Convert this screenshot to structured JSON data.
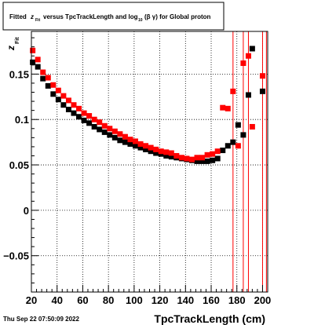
{
  "title_box": {
    "prefix": "Fitted",
    "z": "z",
    "z_sub": "Fit",
    "mid": "versus TpcTrackLength and log",
    "log_sub": "10",
    "paren": "(β  γ) for Global proton"
  },
  "footer": {
    "timestamp": "Thu Sep 22 07:50:09 2022"
  },
  "chart_data": {
    "type": "scatter",
    "title": "Fitted z_Fit versus TpcTrackLength and log_10 (β γ) for Global proton",
    "xlabel": "TpcTrackLength (cm)",
    "ylabel": "z",
    "ylabel_sub": "Fit",
    "xlim": [
      20,
      204
    ],
    "ylim": [
      -0.09,
      0.197
    ],
    "xticks": [
      20,
      40,
      60,
      80,
      100,
      120,
      140,
      160,
      180,
      200
    ],
    "yticks": [
      -0.05,
      0,
      0.05,
      0.1,
      0.15
    ],
    "ytick_labels": [
      "−0.05",
      "0",
      "0.05",
      "0.1",
      "0.15"
    ],
    "grid": true,
    "series": [
      {
        "color": "#000000",
        "points": [
          {
            "x": 21,
            "y": 0.163
          },
          {
            "x": 25,
            "y": 0.158
          },
          {
            "x": 29,
            "y": 0.145
          },
          {
            "x": 33,
            "y": 0.137
          },
          {
            "x": 37,
            "y": 0.128
          },
          {
            "x": 41,
            "y": 0.122
          },
          {
            "x": 45,
            "y": 0.116
          },
          {
            "x": 49,
            "y": 0.111
          },
          {
            "x": 53,
            "y": 0.107
          },
          {
            "x": 57,
            "y": 0.103
          },
          {
            "x": 61,
            "y": 0.099
          },
          {
            "x": 65,
            "y": 0.096
          },
          {
            "x": 69,
            "y": 0.092
          },
          {
            "x": 73,
            "y": 0.089
          },
          {
            "x": 77,
            "y": 0.086
          },
          {
            "x": 81,
            "y": 0.083
          },
          {
            "x": 85,
            "y": 0.08
          },
          {
            "x": 89,
            "y": 0.077
          },
          {
            "x": 93,
            "y": 0.075
          },
          {
            "x": 97,
            "y": 0.073
          },
          {
            "x": 101,
            "y": 0.071
          },
          {
            "x": 105,
            "y": 0.069
          },
          {
            "x": 109,
            "y": 0.067
          },
          {
            "x": 113,
            "y": 0.065
          },
          {
            "x": 117,
            "y": 0.063
          },
          {
            "x": 121,
            "y": 0.062
          },
          {
            "x": 125,
            "y": 0.06
          },
          {
            "x": 129,
            "y": 0.059
          },
          {
            "x": 133,
            "y": 0.058
          },
          {
            "x": 137,
            "y": 0.057
          },
          {
            "x": 141,
            "y": 0.056
          },
          {
            "x": 145,
            "y": 0.055
          },
          {
            "x": 149,
            "y": 0.054
          },
          {
            "x": 153,
            "y": 0.054
          },
          {
            "x": 157,
            "y": 0.054
          },
          {
            "x": 161,
            "y": 0.055
          },
          {
            "x": 165,
            "y": 0.057
          },
          {
            "x": 169,
            "y": 0.066
          },
          {
            "x": 173,
            "y": 0.071
          },
          {
            "x": 177,
            "y": 0.075
          },
          {
            "x": 181,
            "y": 0.094
          },
          {
            "x": 185,
            "y": 0.083
          },
          {
            "x": 189,
            "y": 0.127
          },
          {
            "x": 192,
            "y": 0.178
          },
          {
            "x": 200,
            "y": 0.131
          }
        ]
      },
      {
        "color": "#ff0000",
        "points": [
          {
            "x": 21,
            "y": 0.176
          },
          {
            "x": 25,
            "y": 0.166
          },
          {
            "x": 29,
            "y": 0.152
          },
          {
            "x": 33,
            "y": 0.146
          },
          {
            "x": 37,
            "y": 0.138
          },
          {
            "x": 41,
            "y": 0.132
          },
          {
            "x": 45,
            "y": 0.126
          },
          {
            "x": 49,
            "y": 0.121
          },
          {
            "x": 53,
            "y": 0.116
          },
          {
            "x": 57,
            "y": 0.112
          },
          {
            "x": 61,
            "y": 0.107
          },
          {
            "x": 65,
            "y": 0.104
          },
          {
            "x": 69,
            "y": 0.1
          },
          {
            "x": 73,
            "y": 0.097
          },
          {
            "x": 77,
            "y": 0.093
          },
          {
            "x": 81,
            "y": 0.09
          },
          {
            "x": 85,
            "y": 0.087
          },
          {
            "x": 89,
            "y": 0.084
          },
          {
            "x": 93,
            "y": 0.081
          },
          {
            "x": 97,
            "y": 0.078
          },
          {
            "x": 101,
            "y": 0.076
          },
          {
            "x": 105,
            "y": 0.073
          },
          {
            "x": 109,
            "y": 0.071
          },
          {
            "x": 113,
            "y": 0.069
          },
          {
            "x": 117,
            "y": 0.067
          },
          {
            "x": 121,
            "y": 0.065
          },
          {
            "x": 125,
            "y": 0.064
          },
          {
            "x": 129,
            "y": 0.063
          },
          {
            "x": 133,
            "y": 0.06
          },
          {
            "x": 137,
            "y": 0.058
          },
          {
            "x": 141,
            "y": 0.057
          },
          {
            "x": 145,
            "y": 0.056
          },
          {
            "x": 149,
            "y": 0.058
          },
          {
            "x": 153,
            "y": 0.058
          },
          {
            "x": 157,
            "y": 0.061
          },
          {
            "x": 161,
            "y": 0.062
          },
          {
            "x": 165,
            "y": 0.065
          },
          {
            "x": 169,
            "y": 0.113
          },
          {
            "x": 173,
            "y": 0.112
          },
          {
            "x": 177,
            "y": 0.131
          },
          {
            "x": 181,
            "y": 0.071
          },
          {
            "x": 185,
            "y": 0.162
          },
          {
            "x": 189,
            "y": 0.17
          },
          {
            "x": 192,
            "y": 0.092
          },
          {
            "x": 200,
            "y": 0.148
          }
        ]
      }
    ],
    "error_bars": [
      {
        "x": 177,
        "lo": -0.09,
        "hi": 0.197
      },
      {
        "x": 185,
        "lo": -0.09,
        "hi": 0.197
      },
      {
        "x": 189,
        "lo": -0.09,
        "hi": 0.197
      },
      {
        "x": 200,
        "lo": -0.09,
        "hi": 0.197
      },
      {
        "x": 203,
        "lo": -0.09,
        "hi": 0.197
      }
    ]
  }
}
